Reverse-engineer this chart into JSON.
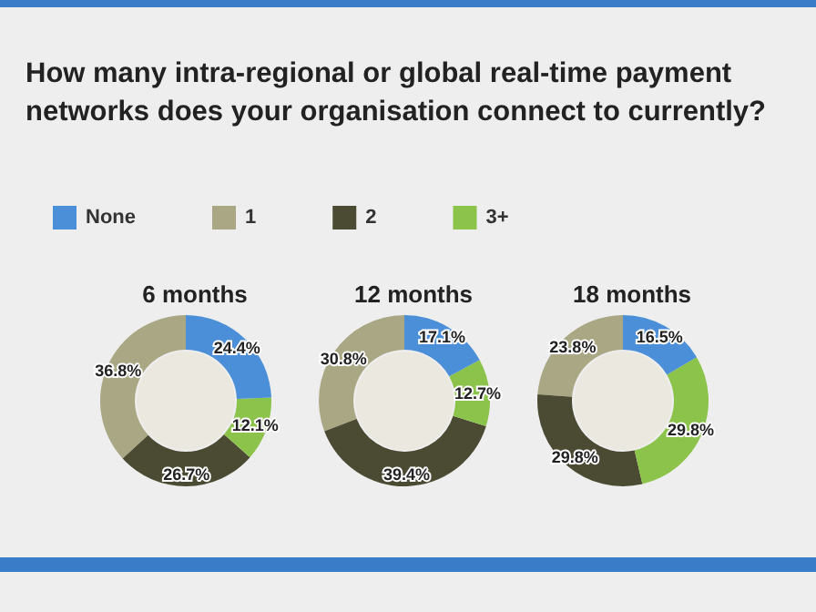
{
  "chart_data": {
    "type": "donut",
    "title": "How many intra-regional or global real-time payment networks does your organisation connect to currently?",
    "legend": "top left",
    "categories": [
      "None",
      "1",
      "2",
      "3+"
    ],
    "colors": [
      "#4a8fd8",
      "#aaa884",
      "#4b4a33",
      "#8cc34a"
    ],
    "series": [
      {
        "name": "6 months",
        "values": [
          24.4,
          36.8,
          26.7,
          12.1
        ],
        "value_labels": [
          "24.4%",
          "36.8%",
          "26.7%",
          "12.1%"
        ]
      },
      {
        "name": "12 months",
        "values": [
          17.1,
          30.8,
          39.4,
          12.7
        ],
        "value_labels": [
          "17.1%",
          "30.8%",
          "39.4%",
          "12.7%"
        ]
      },
      {
        "name": "18 months",
        "values": [
          16.5,
          23.8,
          29.8,
          29.8
        ],
        "value_labels": [
          "16.5%",
          "23.8%",
          "29.8%",
          "29.8%"
        ]
      }
    ]
  }
}
